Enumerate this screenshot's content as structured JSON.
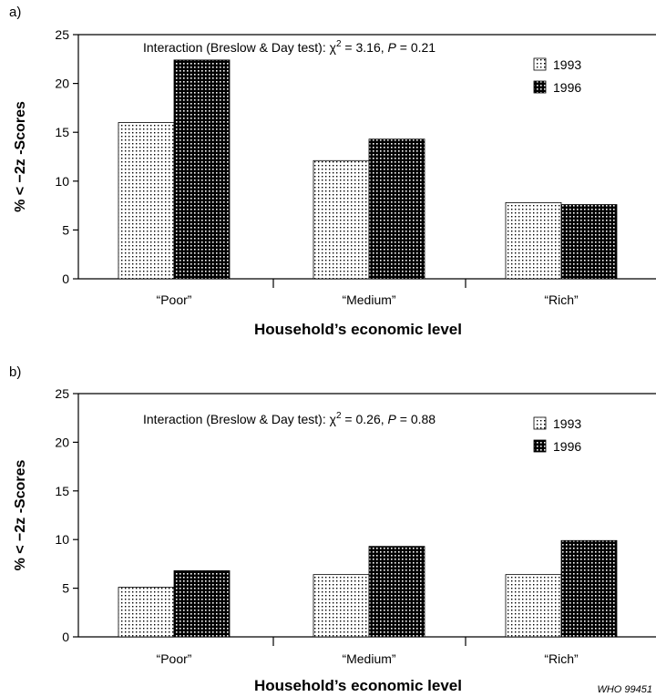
{
  "chart_data": [
    {
      "type": "bar",
      "panel_label": "a)",
      "categories": [
        "“Poor”",
        "“Medium”",
        "“Rich”"
      ],
      "series": [
        {
          "name": "1993",
          "values": [
            16.0,
            12.1,
            7.8
          ],
          "pattern": "sparse-dots"
        },
        {
          "name": "1996",
          "values": [
            22.4,
            14.3,
            7.6
          ],
          "pattern": "dense-dots"
        }
      ],
      "annotation": {
        "prefix": "Interaction (Breslow & Day test): χ",
        "sup": "2",
        "mid": " = 3.16, ",
        "p_label": "P",
        "suffix": " = 0.21"
      },
      "xlabel": "Household’s economic level",
      "ylabel": "% < −2z -Scores",
      "ylim": [
        0,
        25
      ],
      "yticks": [
        0,
        5,
        10,
        15,
        20,
        25
      ],
      "legend_position": "top-right",
      "grid": false
    },
    {
      "type": "bar",
      "panel_label": "b)",
      "categories": [
        "“Poor”",
        "“Medium”",
        "“Rich”"
      ],
      "series": [
        {
          "name": "1993",
          "values": [
            5.1,
            6.4,
            6.4
          ],
          "pattern": "sparse-dots"
        },
        {
          "name": "1996",
          "values": [
            6.8,
            9.3,
            9.9
          ],
          "pattern": "dense-dots"
        }
      ],
      "annotation": {
        "prefix": "Interaction (Breslow & Day test): χ",
        "sup": "2",
        "mid": " = 0.26, ",
        "p_label": "P",
        "suffix": " = 0.88"
      },
      "xlabel": "Household’s economic level",
      "ylabel": "% < −2z -Scores",
      "ylim": [
        0,
        25
      ],
      "yticks": [
        0,
        5,
        10,
        15,
        20,
        25
      ],
      "legend_position": "top-right",
      "grid": false
    }
  ],
  "credit": "WHO 99451"
}
